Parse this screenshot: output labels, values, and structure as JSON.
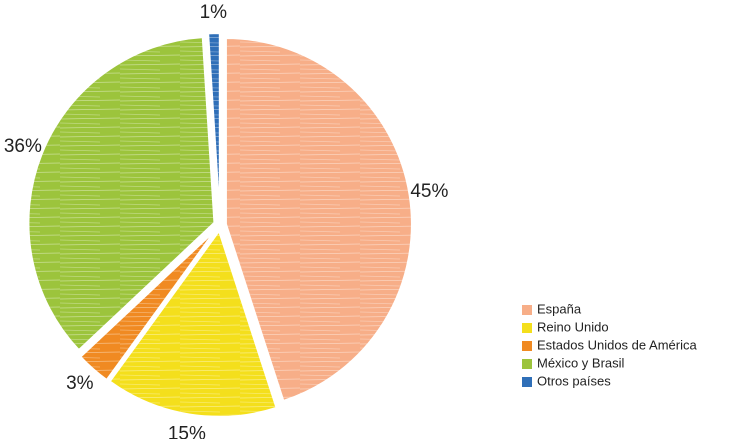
{
  "chart_data": {
    "type": "pie",
    "categories": [
      "España",
      "Reino Unido",
      "Estados Unidos de América",
      "México y Brasil",
      "Otros países"
    ],
    "values": [
      45,
      15,
      3,
      36,
      1
    ],
    "value_labels": [
      "45%",
      "15%",
      "3%",
      "36%",
      "1%"
    ],
    "colors": [
      "#f7ae88",
      "#f4df1c",
      "#f08a22",
      "#9cc43c",
      "#2f6fb8"
    ],
    "legend": "right"
  }
}
